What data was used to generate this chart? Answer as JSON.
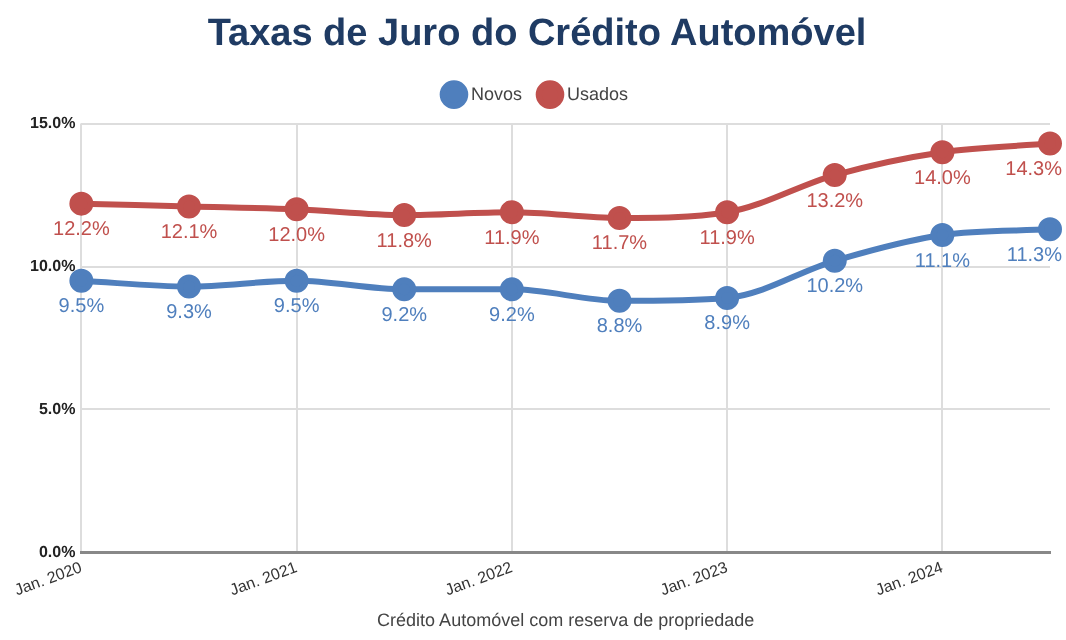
{
  "chart_data": {
    "type": "line",
    "title": "Taxas de Juro do Crédito Automóvel",
    "xlabel": "Crédito Automóvel com reserva de propriedade",
    "categories": [
      "Jan. 2020",
      null,
      "Jan. 2021",
      null,
      "Jan. 2022",
      null,
      "Jan. 2023",
      null,
      "Jan. 2024",
      null
    ],
    "series": [
      {
        "name": "Novos",
        "color": "#4f7fbd",
        "values": [
          9.5,
          9.3,
          9.5,
          9.2,
          9.2,
          8.8,
          8.9,
          10.2,
          11.1,
          11.3
        ],
        "value_labels": [
          "9.5%",
          "9.3%",
          "9.5%",
          "9.2%",
          "9.2%",
          "8.8%",
          "8.9%",
          "10.2%",
          "11.1%",
          "11.3%"
        ]
      },
      {
        "name": "Usados",
        "color": "#c0504d",
        "values": [
          12.2,
          12.1,
          12.0,
          11.8,
          11.9,
          11.7,
          11.9,
          13.2,
          14.0,
          14.3
        ],
        "value_labels": [
          "12.2%",
          "12.1%",
          "12.0%",
          "11.8%",
          "11.9%",
          "11.7%",
          "11.9%",
          "13.2%",
          "14.0%",
          "14.3%"
        ]
      }
    ],
    "ylim": [
      0,
      15
    ],
    "yticks": [
      {
        "value": 0,
        "label": "0.0%"
      },
      {
        "value": 5,
        "label": "5.0%"
      },
      {
        "value": 10,
        "label": "10.0%"
      },
      {
        "value": 15,
        "label": "15.0%"
      }
    ],
    "grid": true,
    "legend": "top",
    "marker": "circle",
    "line_style": "solid"
  }
}
